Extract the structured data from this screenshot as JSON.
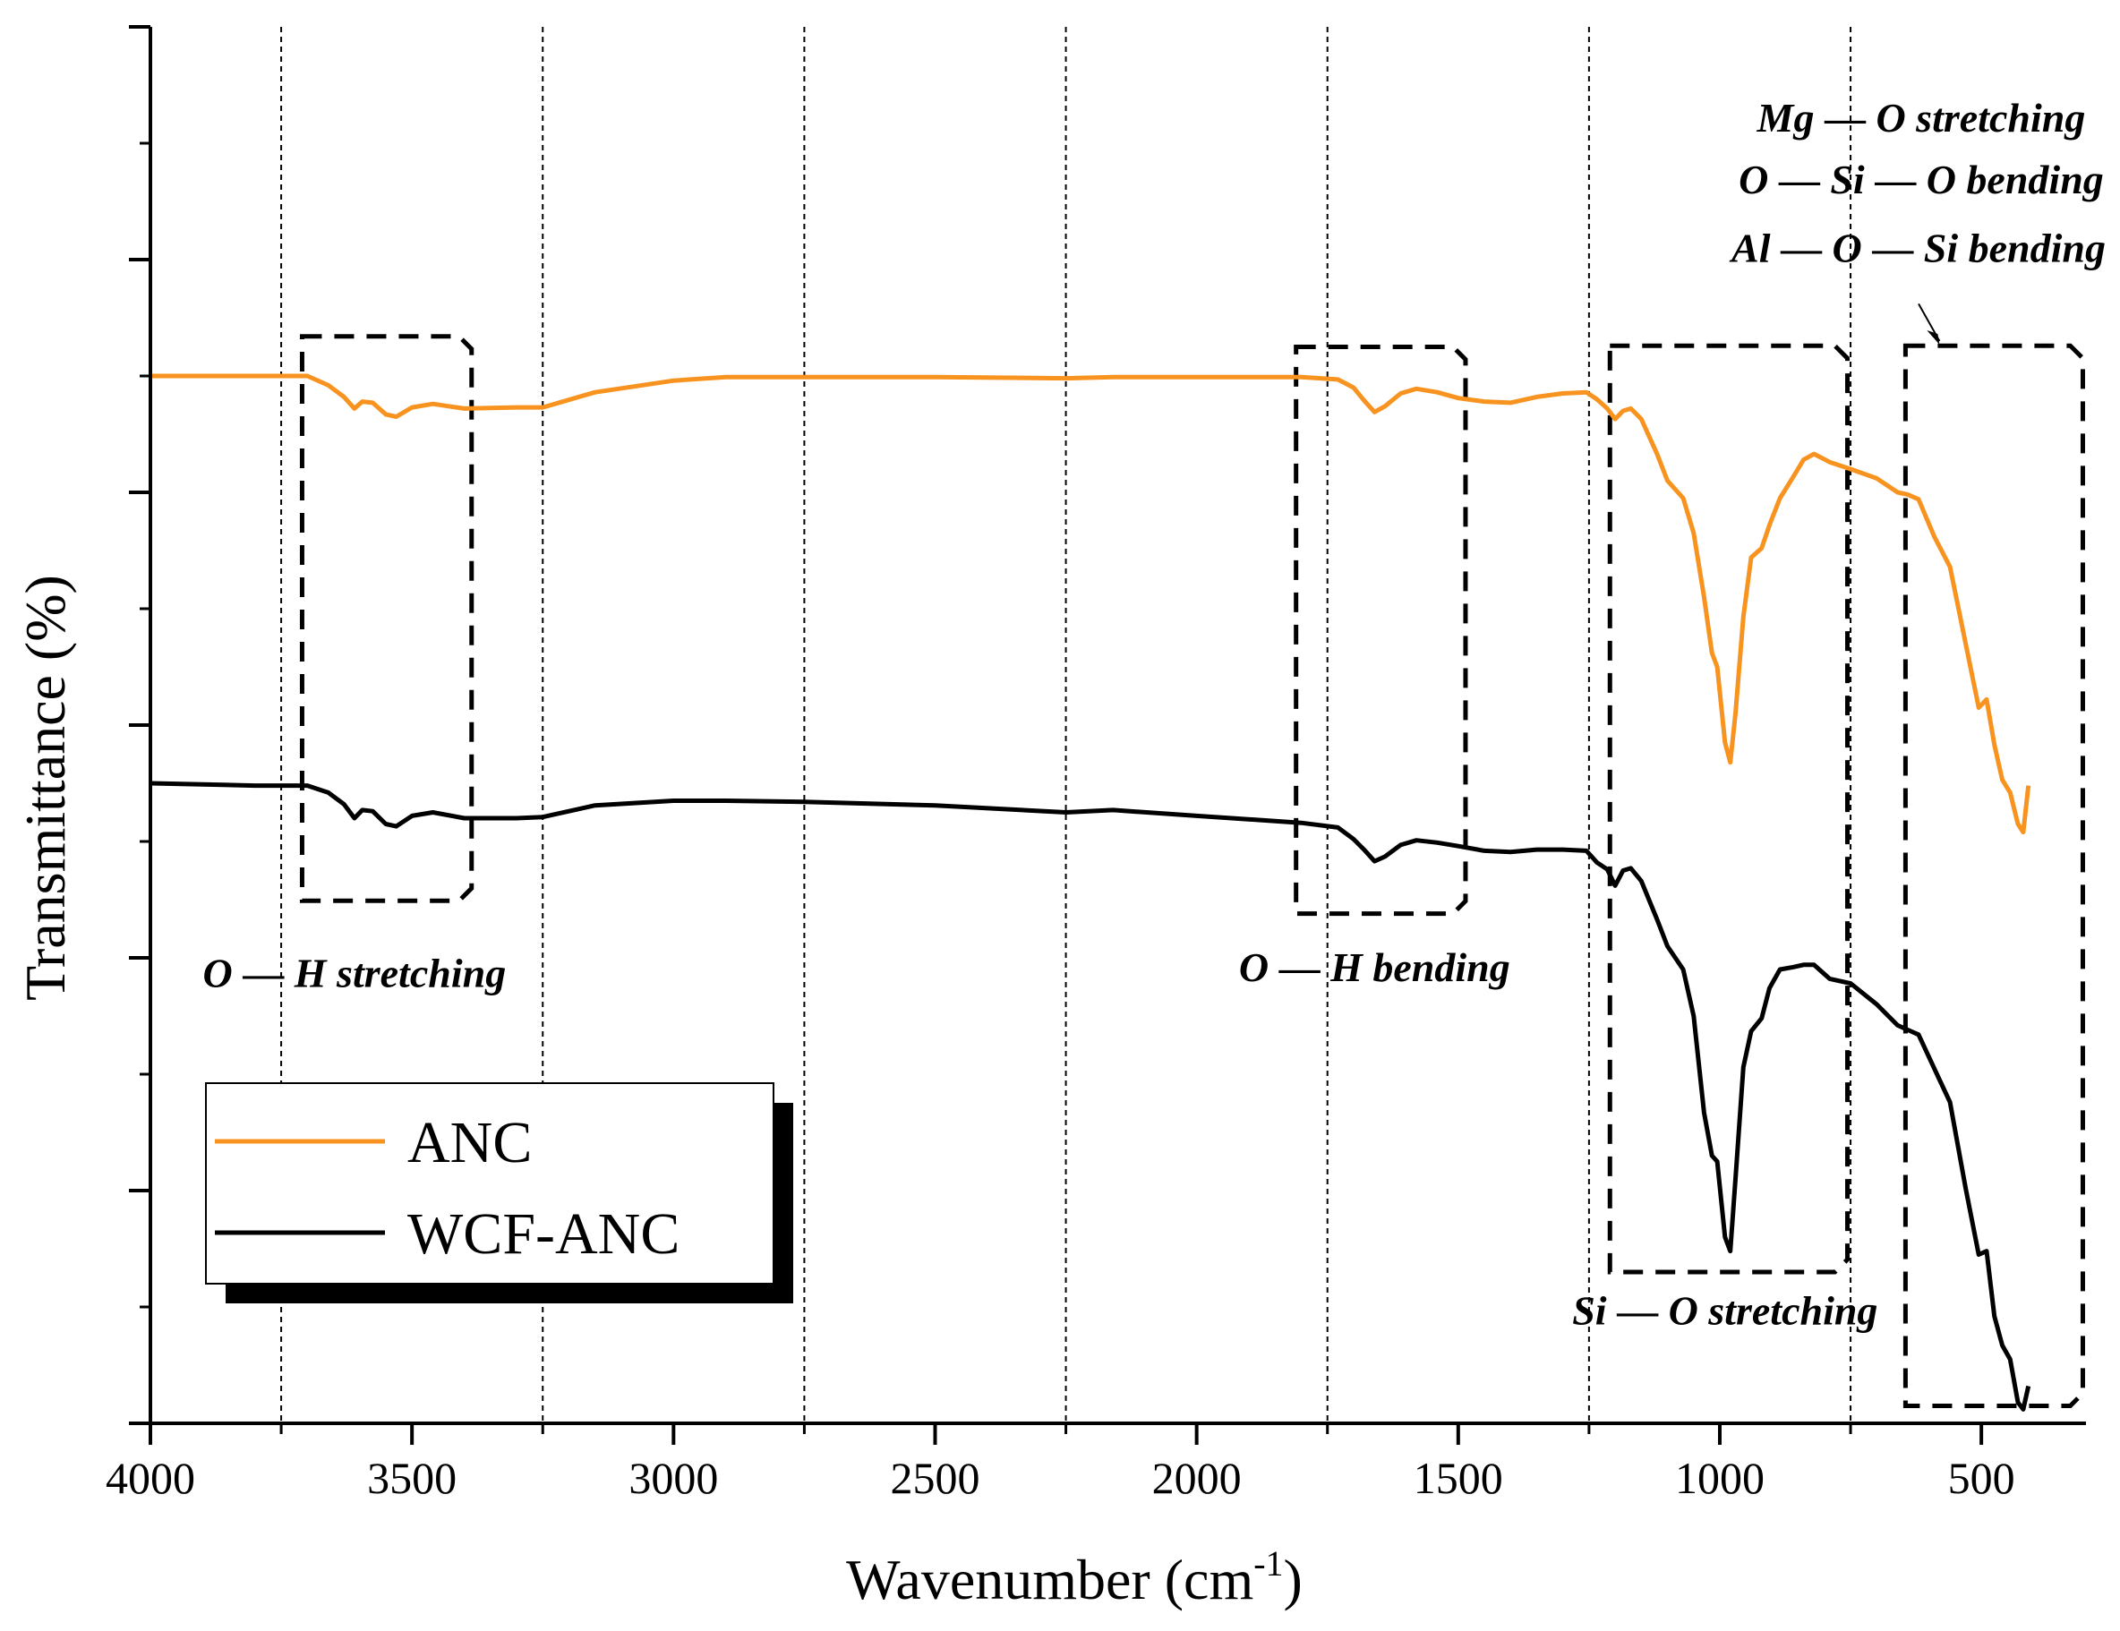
{
  "chart_data": {
    "type": "line",
    "title": "",
    "xlabel": "Wavenumber (cm",
    "xlabel_sup": "-1",
    "xlabel_end": ")",
    "ylabel": "Transmittance (%)",
    "xlim": [
      4000,
      300
    ],
    "x_reversed": true,
    "ylim": [
      0,
      12
    ],
    "y_tick_labels_shown": false,
    "x_ticks": [
      4000,
      3500,
      3000,
      2500,
      2000,
      1500,
      1000,
      500
    ],
    "x_tick_labels": [
      "4000",
      "3500",
      "3000",
      "2500",
      "2000",
      "1500",
      "1000",
      "500"
    ],
    "y_major_ticks": [
      0,
      2,
      4,
      6,
      8,
      10,
      12
    ],
    "y_minor_ticks": [
      1,
      3,
      5,
      7,
      9,
      11
    ],
    "reference_lines_x": [
      3750,
      3250,
      2750,
      2250,
      1750,
      1250,
      750
    ],
    "grid": false,
    "legend_position": "lower-left",
    "series": [
      {
        "name": "ANC",
        "color": "#F7931E",
        "points": [
          [
            4000,
            9.0
          ],
          [
            3800,
            9.0
          ],
          [
            3700,
            9.0
          ],
          [
            3660,
            8.92
          ],
          [
            3630,
            8.82
          ],
          [
            3610,
            8.72
          ],
          [
            3595,
            8.78
          ],
          [
            3575,
            8.77
          ],
          [
            3550,
            8.67
          ],
          [
            3530,
            8.65
          ],
          [
            3500,
            8.73
          ],
          [
            3460,
            8.76
          ],
          [
            3400,
            8.72
          ],
          [
            3300,
            8.73
          ],
          [
            3250,
            8.73
          ],
          [
            3150,
            8.86
          ],
          [
            3000,
            8.96
          ],
          [
            2900,
            8.99
          ],
          [
            2750,
            8.99
          ],
          [
            2500,
            8.99
          ],
          [
            2250,
            8.98
          ],
          [
            2160,
            8.99
          ],
          [
            2000,
            8.99
          ],
          [
            1800,
            8.99
          ],
          [
            1730,
            8.97
          ],
          [
            1700,
            8.9
          ],
          [
            1680,
            8.79
          ],
          [
            1660,
            8.69
          ],
          [
            1640,
            8.74
          ],
          [
            1610,
            8.85
          ],
          [
            1580,
            8.89
          ],
          [
            1540,
            8.86
          ],
          [
            1500,
            8.81
          ],
          [
            1450,
            8.78
          ],
          [
            1400,
            8.77
          ],
          [
            1350,
            8.82
          ],
          [
            1300,
            8.85
          ],
          [
            1255,
            8.86
          ],
          [
            1235,
            8.8
          ],
          [
            1215,
            8.72
          ],
          [
            1200,
            8.63
          ],
          [
            1185,
            8.7
          ],
          [
            1170,
            8.72
          ],
          [
            1150,
            8.63
          ],
          [
            1120,
            8.33
          ],
          [
            1100,
            8.1
          ],
          [
            1070,
            7.95
          ],
          [
            1050,
            7.65
          ],
          [
            1030,
            7.1
          ],
          [
            1015,
            6.62
          ],
          [
            1005,
            6.5
          ],
          [
            990,
            5.85
          ],
          [
            980,
            5.68
          ],
          [
            970,
            6.1
          ],
          [
            955,
            6.93
          ],
          [
            940,
            7.44
          ],
          [
            920,
            7.52
          ],
          [
            905,
            7.72
          ],
          [
            885,
            7.95
          ],
          [
            860,
            8.13
          ],
          [
            840,
            8.28
          ],
          [
            820,
            8.33
          ],
          [
            790,
            8.26
          ],
          [
            750,
            8.2
          ],
          [
            700,
            8.12
          ],
          [
            660,
            8.0
          ],
          [
            640,
            7.98
          ],
          [
            620,
            7.94
          ],
          [
            590,
            7.62
          ],
          [
            560,
            7.36
          ],
          [
            530,
            6.7
          ],
          [
            505,
            6.15
          ],
          [
            490,
            6.22
          ],
          [
            475,
            5.83
          ],
          [
            460,
            5.53
          ],
          [
            445,
            5.42
          ],
          [
            430,
            5.15
          ],
          [
            420,
            5.08
          ],
          [
            410,
            5.48
          ]
        ]
      },
      {
        "name": "WCF-ANC",
        "color": "#000000",
        "points": [
          [
            4000,
            5.5
          ],
          [
            3800,
            5.48
          ],
          [
            3700,
            5.48
          ],
          [
            3660,
            5.42
          ],
          [
            3630,
            5.32
          ],
          [
            3610,
            5.2
          ],
          [
            3595,
            5.27
          ],
          [
            3575,
            5.26
          ],
          [
            3550,
            5.15
          ],
          [
            3530,
            5.13
          ],
          [
            3500,
            5.22
          ],
          [
            3460,
            5.25
          ],
          [
            3400,
            5.2
          ],
          [
            3300,
            5.2
          ],
          [
            3250,
            5.21
          ],
          [
            3150,
            5.31
          ],
          [
            3000,
            5.35
          ],
          [
            2900,
            5.35
          ],
          [
            2750,
            5.34
          ],
          [
            2500,
            5.31
          ],
          [
            2250,
            5.25
          ],
          [
            2160,
            5.27
          ],
          [
            2000,
            5.22
          ],
          [
            1800,
            5.16
          ],
          [
            1730,
            5.12
          ],
          [
            1700,
            5.02
          ],
          [
            1680,
            4.93
          ],
          [
            1660,
            4.83
          ],
          [
            1640,
            4.87
          ],
          [
            1610,
            4.97
          ],
          [
            1580,
            5.01
          ],
          [
            1540,
            4.99
          ],
          [
            1500,
            4.96
          ],
          [
            1450,
            4.92
          ],
          [
            1400,
            4.91
          ],
          [
            1350,
            4.93
          ],
          [
            1300,
            4.93
          ],
          [
            1255,
            4.92
          ],
          [
            1235,
            4.82
          ],
          [
            1215,
            4.76
          ],
          [
            1200,
            4.62
          ],
          [
            1185,
            4.75
          ],
          [
            1170,
            4.77
          ],
          [
            1150,
            4.66
          ],
          [
            1120,
            4.33
          ],
          [
            1100,
            4.1
          ],
          [
            1070,
            3.9
          ],
          [
            1050,
            3.5
          ],
          [
            1030,
            2.67
          ],
          [
            1015,
            2.3
          ],
          [
            1005,
            2.25
          ],
          [
            990,
            1.6
          ],
          [
            980,
            1.48
          ],
          [
            970,
            2.1
          ],
          [
            955,
            3.06
          ],
          [
            940,
            3.37
          ],
          [
            920,
            3.48
          ],
          [
            905,
            3.74
          ],
          [
            885,
            3.9
          ],
          [
            860,
            3.92
          ],
          [
            840,
            3.94
          ],
          [
            820,
            3.94
          ],
          [
            790,
            3.82
          ],
          [
            750,
            3.78
          ],
          [
            700,
            3.6
          ],
          [
            660,
            3.42
          ],
          [
            640,
            3.38
          ],
          [
            620,
            3.34
          ],
          [
            590,
            3.05
          ],
          [
            560,
            2.76
          ],
          [
            530,
            2.02
          ],
          [
            505,
            1.45
          ],
          [
            490,
            1.48
          ],
          [
            475,
            0.92
          ],
          [
            460,
            0.67
          ],
          [
            445,
            0.55
          ],
          [
            430,
            0.18
          ],
          [
            420,
            0.12
          ],
          [
            410,
            0.32
          ]
        ]
      }
    ],
    "highlight_boxes": [
      {
        "x_from": 3710,
        "x_to": 3410,
        "y_from": 4.49,
        "y_to": 9.34
      },
      {
        "x_from": 1810,
        "x_to": 1510,
        "y_from": 4.38,
        "y_to": 9.25
      },
      {
        "x_from": 1210,
        "x_to": 780,
        "y_from": 1.3,
        "y_to": 9.26
      },
      {
        "x_from": 645,
        "x_to": 330,
        "y_from": 0.15,
        "y_to": 9.26
      }
    ],
    "annotations": [
      {
        "parts": [
          "O ",
          "H stretching"
        ],
        "x": 3610,
        "y": 3.75,
        "anchor": "middle"
      },
      {
        "parts": [
          "O ",
          "H bending"
        ],
        "x": 1660,
        "y": 3.8,
        "anchor": "middle"
      },
      {
        "parts": [
          "Si ",
          " O stretching"
        ],
        "x": 990,
        "y": 0.85,
        "anchor": "middle"
      },
      {
        "parts": [
          "Mg ",
          "O stretching"
        ],
        "x": 615,
        "y": 11.1,
        "anchor": "middle"
      },
      {
        "parts": [
          "O ",
          "Si ",
          "O bending"
        ],
        "x": 615,
        "y": 10.57,
        "anchor": "middle"
      },
      {
        "parts": [
          "Al ",
          "O ",
          "Si bending"
        ],
        "x": 620,
        "y": 9.98,
        "anchor": "middle"
      }
    ],
    "arrow": {
      "x_from": 620,
      "y_from": 9.62,
      "x_to": 580,
      "y_to": 9.3
    }
  }
}
